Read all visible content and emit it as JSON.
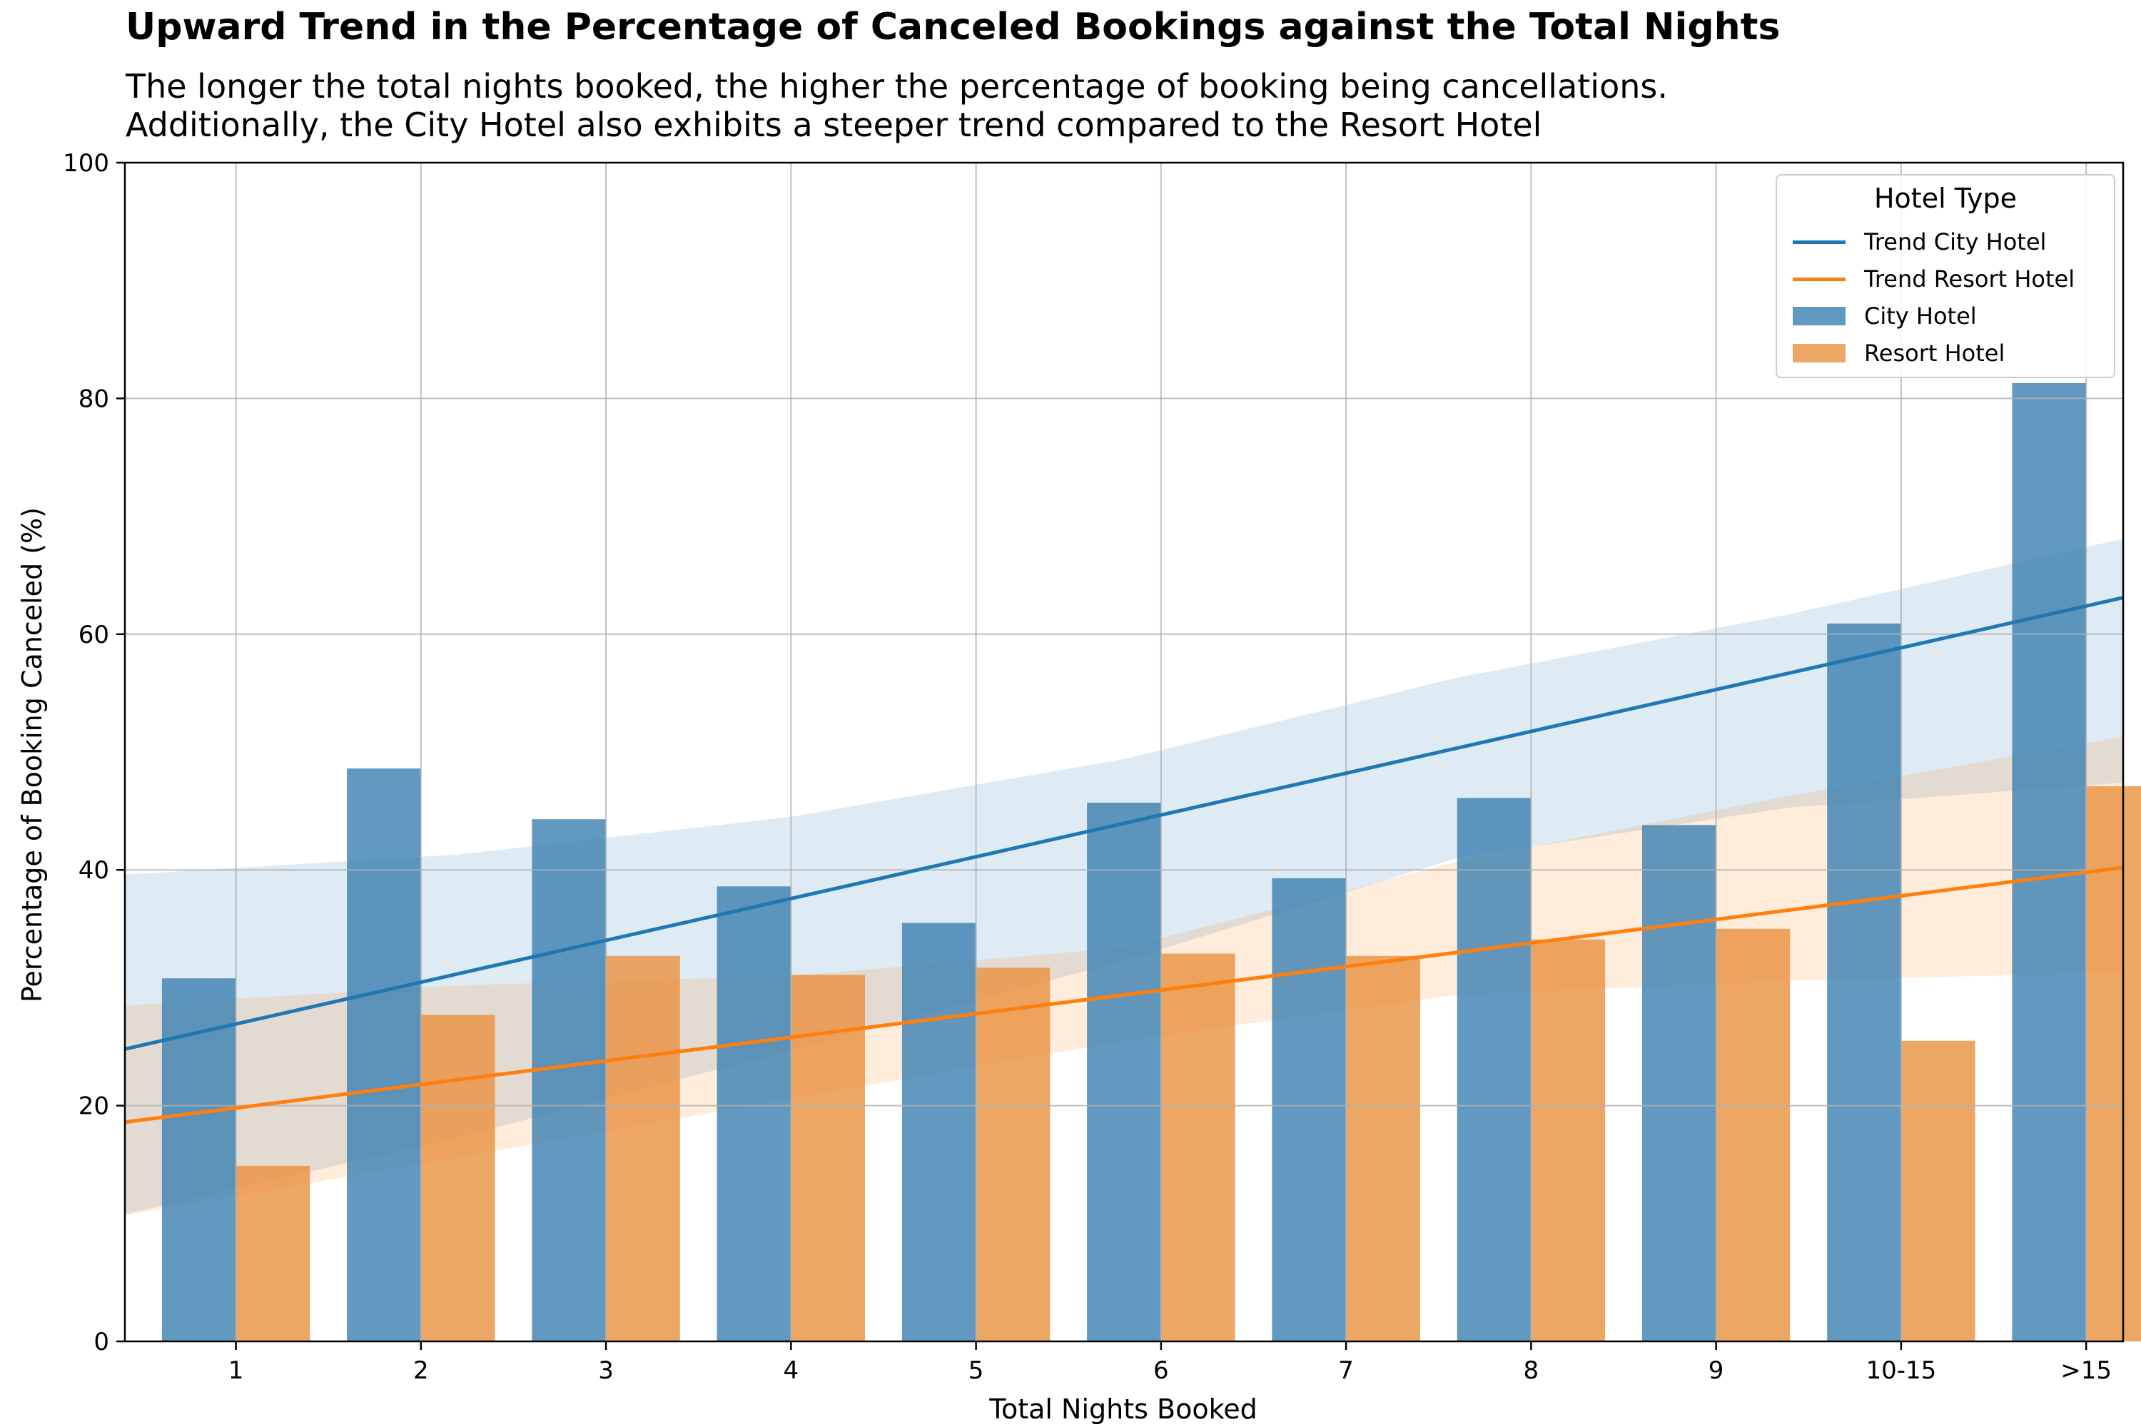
{
  "title": "Upward Trend in the Percentage of Canceled Bookings against the Total Nights",
  "subtitle_lines": [
    "The longer the total nights booked, the higher the percentage of booking being cancellations.",
    "Additionally, the City Hotel also exhibits a steeper trend compared to the Resort Hotel"
  ],
  "colors": {
    "city": "#1f77b4",
    "resort": "#ff7f0e",
    "city_bar": "#3a80b0",
    "resort_bar": "#e8913f"
  },
  "chart_data": {
    "type": "bar",
    "title": "Upward Trend in the Percentage of Canceled Bookings against the Total Nights",
    "xlabel": "Total Nights Booked",
    "ylabel": "Percentage of Booking Canceled (%)",
    "categories": [
      "1",
      "2",
      "3",
      "4",
      "5",
      "6",
      "7",
      "8",
      "9",
      "10-15",
      ">15"
    ],
    "ylim": [
      0,
      100
    ],
    "yticks": [
      0,
      20,
      40,
      60,
      80,
      100
    ],
    "grid": true,
    "legend_title": "Hotel Type",
    "legend_position": "top-right",
    "series": [
      {
        "name": "City Hotel",
        "values": [
          30.8,
          48.6,
          44.3,
          38.6,
          35.5,
          45.7,
          39.3,
          46.1,
          43.8,
          60.9,
          81.3
        ]
      },
      {
        "name": "Resort Hotel",
        "values": [
          14.9,
          27.7,
          32.7,
          31.1,
          31.7,
          32.9,
          32.7,
          34.1,
          35.0,
          25.5,
          47.1
        ]
      }
    ],
    "trend_lines": [
      {
        "name": "Trend City Hotel",
        "start": 24.8,
        "end": 63.1,
        "band_lower": [
          10.8,
          17.3,
          24.7,
          32.3,
          41.0,
          45.3,
          47.4
        ],
        "band_upper": [
          39.6,
          41.3,
          44.5,
          49.4,
          56.3,
          61.7,
          68.1
        ]
      },
      {
        "name": "Trend Resort Hotel",
        "start": 18.6,
        "end": 40.2,
        "band_lower": [
          10.7,
          15.6,
          20.6,
          25.5,
          29.4,
          30.6,
          31.3
        ],
        "band_upper": [
          28.5,
          30.2,
          31.0,
          33.4,
          40.7,
          46.3,
          51.3
        ]
      }
    ]
  }
}
